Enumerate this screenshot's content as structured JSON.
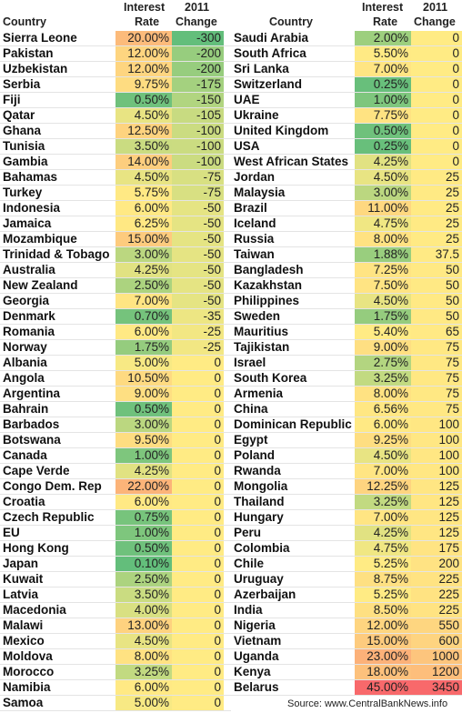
{
  "colors": {
    "low": "#63be7b",
    "mid": "#ffeb84",
    "high": "#f8696b"
  },
  "columns": {
    "country": "Country",
    "rate_line1": "Interest",
    "rate_line2": "Rate",
    "change_line1": "2011",
    "change_line2": "Change"
  },
  "source": "Source: www.CentralBankNews.info",
  "chart_data": {
    "type": "table",
    "value_columns": [
      "Interest Rate",
      "2011 Change"
    ],
    "left": [
      {
        "country": "Sierra Leone",
        "rate": "20.00%",
        "change": "-300"
      },
      {
        "country": "Pakistan",
        "rate": "12.00%",
        "change": "-200"
      },
      {
        "country": "Uzbekistan",
        "rate": "12.00%",
        "change": "-200"
      },
      {
        "country": "Serbia",
        "rate": "9.75%",
        "change": "-175"
      },
      {
        "country": "Fiji",
        "rate": "0.50%",
        "change": "-150"
      },
      {
        "country": "Qatar",
        "rate": "4.50%",
        "change": "-105"
      },
      {
        "country": "Ghana",
        "rate": "12.50%",
        "change": "-100"
      },
      {
        "country": "Tunisia",
        "rate": "3.50%",
        "change": "-100"
      },
      {
        "country": "Gambia",
        "rate": "14.00%",
        "change": "-100"
      },
      {
        "country": "Bahamas",
        "rate": "4.50%",
        "change": "-75"
      },
      {
        "country": "Turkey",
        "rate": "5.75%",
        "change": "-75"
      },
      {
        "country": "Indonesia",
        "rate": "6.00%",
        "change": "-50"
      },
      {
        "country": "Jamaica",
        "rate": "6.25%",
        "change": "-50"
      },
      {
        "country": "Mozambique",
        "rate": "15.00%",
        "change": "-50"
      },
      {
        "country": "Trinidad & Tobago",
        "rate": "3.00%",
        "change": "-50"
      },
      {
        "country": "Australia",
        "rate": "4.25%",
        "change": "-50"
      },
      {
        "country": "New Zealand",
        "rate": "2.50%",
        "change": "-50"
      },
      {
        "country": "Georgia",
        "rate": "7.00%",
        "change": "-50"
      },
      {
        "country": "Denmark",
        "rate": "0.70%",
        "change": "-35"
      },
      {
        "country": "Romania",
        "rate": "6.00%",
        "change": "-25"
      },
      {
        "country": "Norway",
        "rate": "1.75%",
        "change": "-25"
      },
      {
        "country": "Albania",
        "rate": "5.00%",
        "change": "0"
      },
      {
        "country": "Angola",
        "rate": "10.50%",
        "change": "0"
      },
      {
        "country": "Argentina",
        "rate": "9.00%",
        "change": "0"
      },
      {
        "country": "Bahrain",
        "rate": "0.50%",
        "change": "0"
      },
      {
        "country": "Barbados",
        "rate": "3.00%",
        "change": "0"
      },
      {
        "country": "Botswana",
        "rate": "9.50%",
        "change": "0"
      },
      {
        "country": "Canada",
        "rate": "1.00%",
        "change": "0"
      },
      {
        "country": "Cape Verde",
        "rate": "4.25%",
        "change": "0"
      },
      {
        "country": "Congo Dem. Rep",
        "rate": "22.00%",
        "change": "0"
      },
      {
        "country": "Croatia",
        "rate": "6.00%",
        "change": "0"
      },
      {
        "country": "Czech Republic",
        "rate": "0.75%",
        "change": "0"
      },
      {
        "country": "EU",
        "rate": "1.00%",
        "change": "0"
      },
      {
        "country": "Hong Kong",
        "rate": "0.50%",
        "change": "0"
      },
      {
        "country": "Japan",
        "rate": "0.10%",
        "change": "0"
      },
      {
        "country": "Kuwait",
        "rate": "2.50%",
        "change": "0"
      },
      {
        "country": "Latvia",
        "rate": "3.50%",
        "change": "0"
      },
      {
        "country": "Macedonia",
        "rate": "4.00%",
        "change": "0"
      },
      {
        "country": "Malawi",
        "rate": "13.00%",
        "change": "0"
      },
      {
        "country": "Mexico",
        "rate": "4.50%",
        "change": "0"
      },
      {
        "country": "Moldova",
        "rate": "8.00%",
        "change": "0"
      },
      {
        "country": "Morocco",
        "rate": "3.25%",
        "change": "0"
      },
      {
        "country": "Namibia",
        "rate": "6.00%",
        "change": "0"
      },
      {
        "country": "Samoa",
        "rate": "5.00%",
        "change": "0"
      }
    ],
    "right": [
      {
        "country": "Saudi Arabia",
        "rate": "2.00%",
        "change": "0"
      },
      {
        "country": "South Africa",
        "rate": "5.50%",
        "change": "0"
      },
      {
        "country": "Sri Lanka",
        "rate": "7.00%",
        "change": "0"
      },
      {
        "country": "Switzerland",
        "rate": "0.25%",
        "change": "0"
      },
      {
        "country": "UAE",
        "rate": "1.00%",
        "change": "0"
      },
      {
        "country": "Ukraine",
        "rate": "7.75%",
        "change": "0"
      },
      {
        "country": "United Kingdom",
        "rate": "0.50%",
        "change": "0"
      },
      {
        "country": "USA",
        "rate": "0.25%",
        "change": "0"
      },
      {
        "country": "West African States",
        "rate": "4.25%",
        "change": "0"
      },
      {
        "country": "Jordan",
        "rate": "4.50%",
        "change": "25"
      },
      {
        "country": "Malaysia",
        "rate": "3.00%",
        "change": "25"
      },
      {
        "country": "Brazil",
        "rate": "11.00%",
        "change": "25"
      },
      {
        "country": "Iceland",
        "rate": "4.75%",
        "change": "25"
      },
      {
        "country": "Russia",
        "rate": "8.00%",
        "change": "25"
      },
      {
        "country": "Taiwan",
        "rate": "1.88%",
        "change": "37.5"
      },
      {
        "country": "Bangladesh",
        "rate": "7.25%",
        "change": "50"
      },
      {
        "country": "Kazakhstan",
        "rate": "7.50%",
        "change": "50"
      },
      {
        "country": "Philippines",
        "rate": "4.50%",
        "change": "50"
      },
      {
        "country": "Sweden",
        "rate": "1.75%",
        "change": "50"
      },
      {
        "country": "Mauritius",
        "rate": "5.40%",
        "change": "65"
      },
      {
        "country": "Tajikistan",
        "rate": "9.00%",
        "change": "75"
      },
      {
        "country": "Israel",
        "rate": "2.75%",
        "change": "75"
      },
      {
        "country": "South Korea",
        "rate": "3.25%",
        "change": "75"
      },
      {
        "country": "Armenia",
        "rate": "8.00%",
        "change": "75"
      },
      {
        "country": "China",
        "rate": "6.56%",
        "change": "75"
      },
      {
        "country": "Dominican Republic",
        "rate": "6.00%",
        "change": "100"
      },
      {
        "country": "Egypt",
        "rate": "9.25%",
        "change": "100"
      },
      {
        "country": "Poland",
        "rate": "4.50%",
        "change": "100"
      },
      {
        "country": "Rwanda",
        "rate": "7.00%",
        "change": "100"
      },
      {
        "country": "Mongolia",
        "rate": "12.25%",
        "change": "125"
      },
      {
        "country": "Thailand",
        "rate": "3.25%",
        "change": "125"
      },
      {
        "country": "Hungary",
        "rate": "7.00%",
        "change": "125"
      },
      {
        "country": "Peru",
        "rate": "4.25%",
        "change": "125"
      },
      {
        "country": "Colombia",
        "rate": "4.75%",
        "change": "175"
      },
      {
        "country": "Chile",
        "rate": "5.25%",
        "change": "200"
      },
      {
        "country": "Uruguay",
        "rate": "8.75%",
        "change": "225"
      },
      {
        "country": "Azerbaijan",
        "rate": "5.25%",
        "change": "225"
      },
      {
        "country": "India",
        "rate": "8.50%",
        "change": "225"
      },
      {
        "country": "Nigeria",
        "rate": "12.00%",
        "change": "550"
      },
      {
        "country": "Vietnam",
        "rate": "15.00%",
        "change": "600"
      },
      {
        "country": "Uganda",
        "rate": "23.00%",
        "change": "1000"
      },
      {
        "country": "Kenya",
        "rate": "18.00%",
        "change": "1200"
      },
      {
        "country": "Belarus",
        "rate": "45.00%",
        "change": "3450"
      }
    ]
  }
}
